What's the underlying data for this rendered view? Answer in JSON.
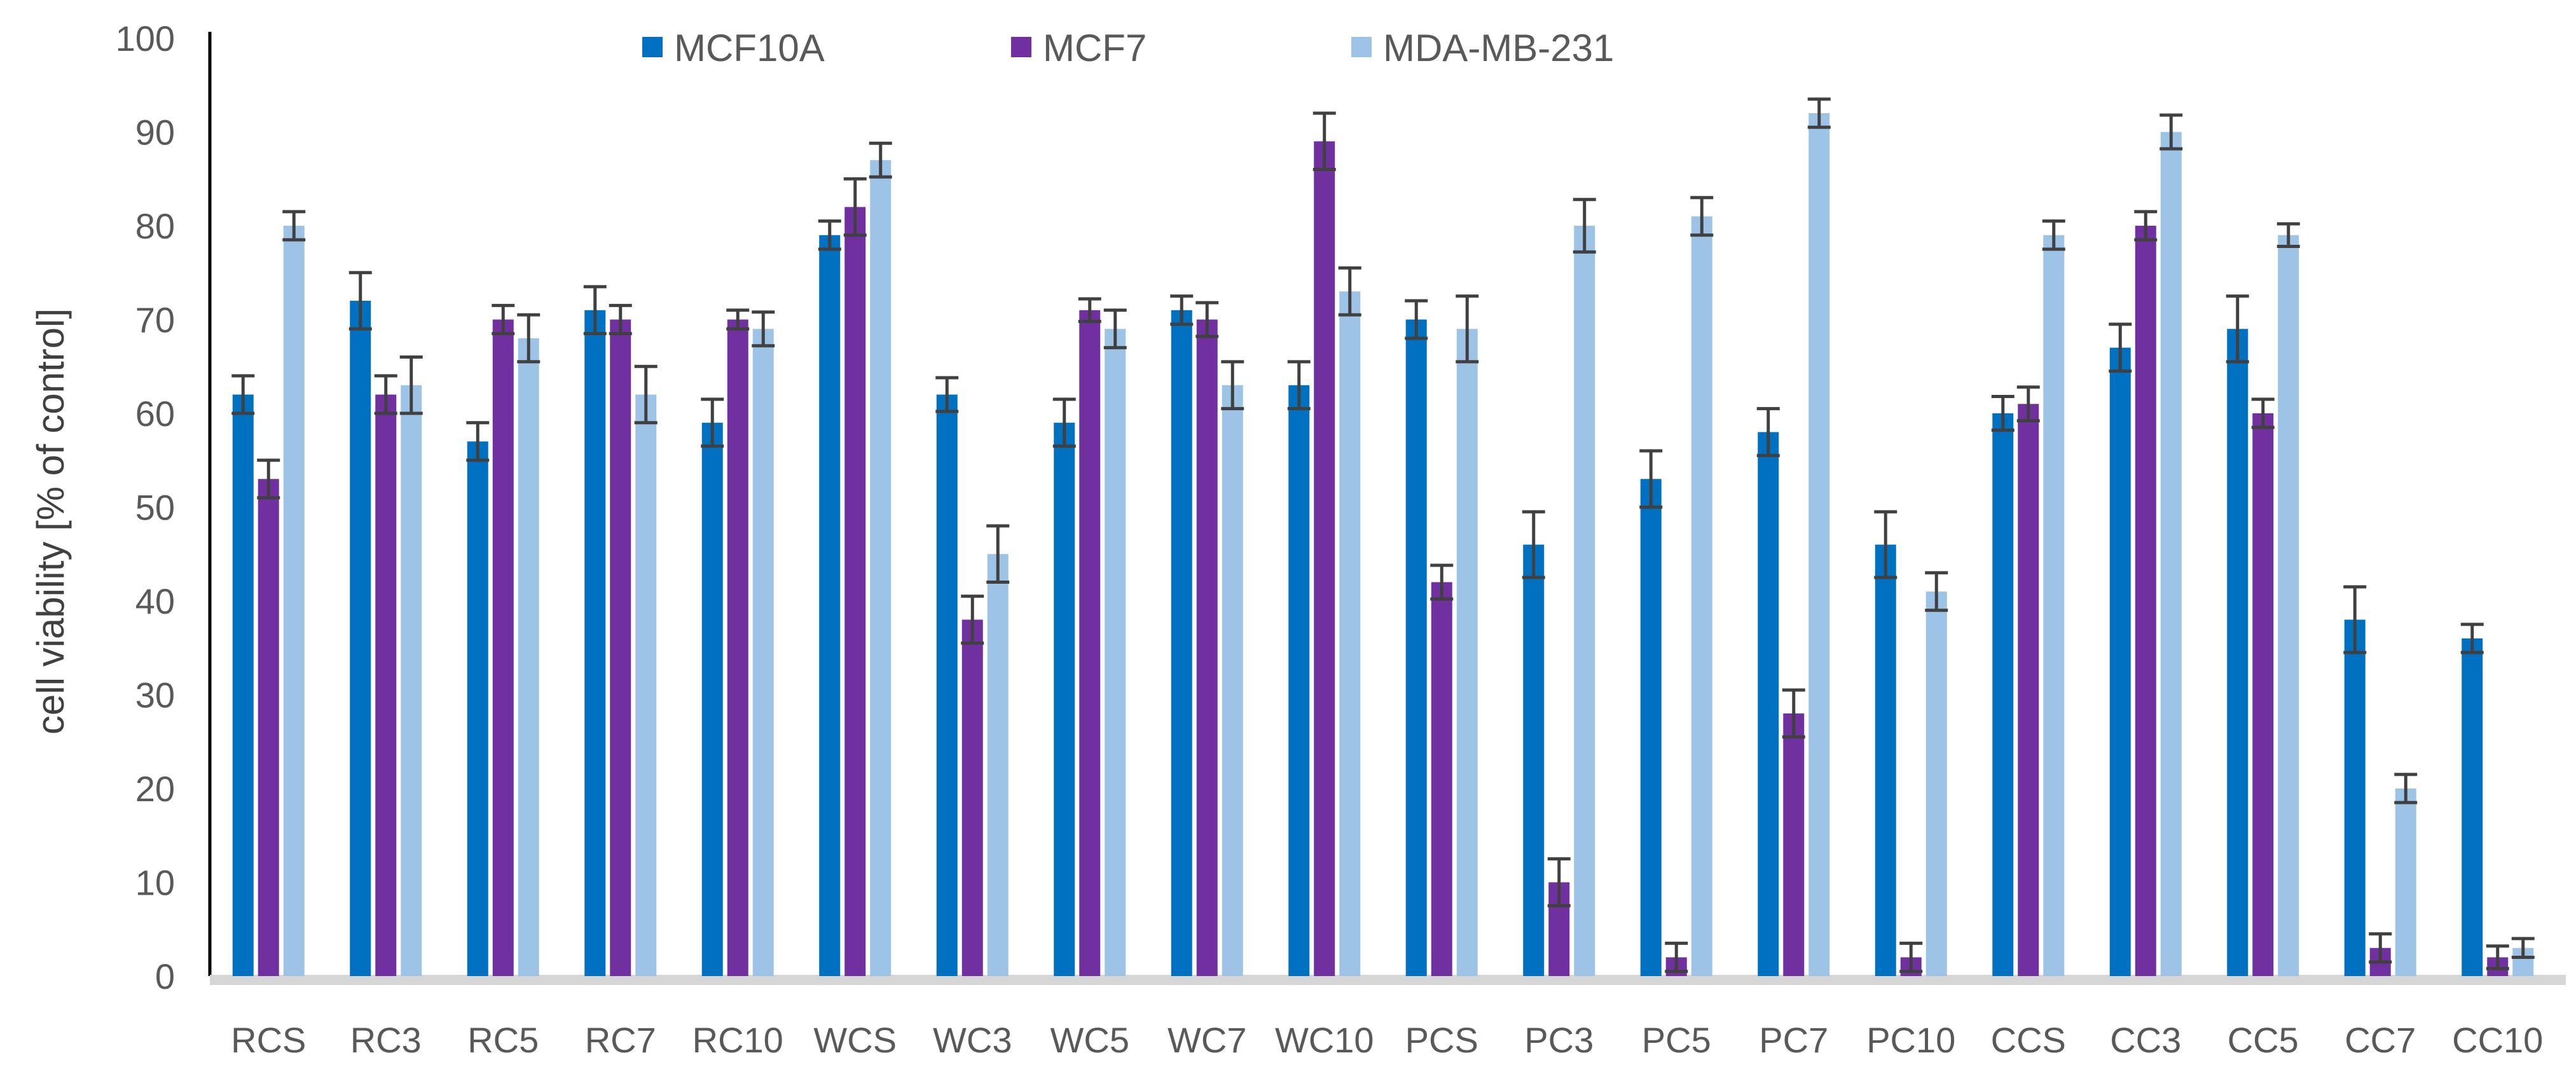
{
  "chart_data": {
    "type": "bar",
    "title": "",
    "xlabel": "",
    "ylabel": "cell viability [% of control]",
    "ylim": [
      0,
      100
    ],
    "yticks": [
      "0",
      "10",
      "20",
      "30",
      "40",
      "50",
      "60",
      "70",
      "80",
      "90",
      "100"
    ],
    "grid": false,
    "legend_position": "top",
    "categories": [
      "RCS",
      "RC3",
      "RC5",
      "RC7",
      "RC10",
      "WCS",
      "WC3",
      "WC5",
      "WC7",
      "WC10",
      "PCS",
      "PC3",
      "PC5",
      "PC7",
      "PC10",
      "CCS",
      "CC3",
      "CC5",
      "CC7",
      "CC10"
    ],
    "series": [
      {
        "name": "MCF10A",
        "color": "#0070C0",
        "values": [
          62,
          72,
          57,
          71,
          59,
          79,
          62,
          59,
          71,
          63,
          70,
          46,
          53,
          58,
          46,
          60,
          67,
          69,
          38,
          36
        ],
        "errors": [
          2.0,
          3.0,
          2.0,
          2.5,
          2.5,
          1.5,
          1.8,
          2.5,
          1.5,
          2.5,
          2.0,
          3.5,
          3.0,
          2.5,
          3.5,
          1.8,
          2.5,
          3.5,
          3.5,
          1.5
        ]
      },
      {
        "name": "MCF7",
        "color": "#7030A0",
        "values": [
          53,
          62,
          70,
          70,
          70,
          82,
          38,
          71,
          70,
          89,
          42,
          10,
          2,
          28,
          2,
          61,
          80,
          60,
          3,
          2
        ],
        "errors": [
          2.0,
          2.0,
          1.5,
          1.5,
          1.0,
          3.0,
          2.5,
          1.2,
          1.8,
          3.0,
          1.8,
          2.5,
          1.5,
          2.5,
          1.5,
          1.8,
          1.5,
          1.5,
          1.5,
          1.2
        ]
      },
      {
        "name": "MDA-MB-231",
        "color": "#9DC3E6",
        "values": [
          80,
          63,
          68,
          62,
          69,
          87,
          45,
          69,
          63,
          73,
          69,
          80,
          81,
          92,
          41,
          79,
          90,
          79,
          20,
          3
        ],
        "errors": [
          1.5,
          3.0,
          2.5,
          3.0,
          1.8,
          1.8,
          3.0,
          2.0,
          2.5,
          2.5,
          3.5,
          2.8,
          2.0,
          1.5,
          2.0,
          1.5,
          1.8,
          1.2,
          1.5,
          1.0
        ]
      }
    ]
  }
}
